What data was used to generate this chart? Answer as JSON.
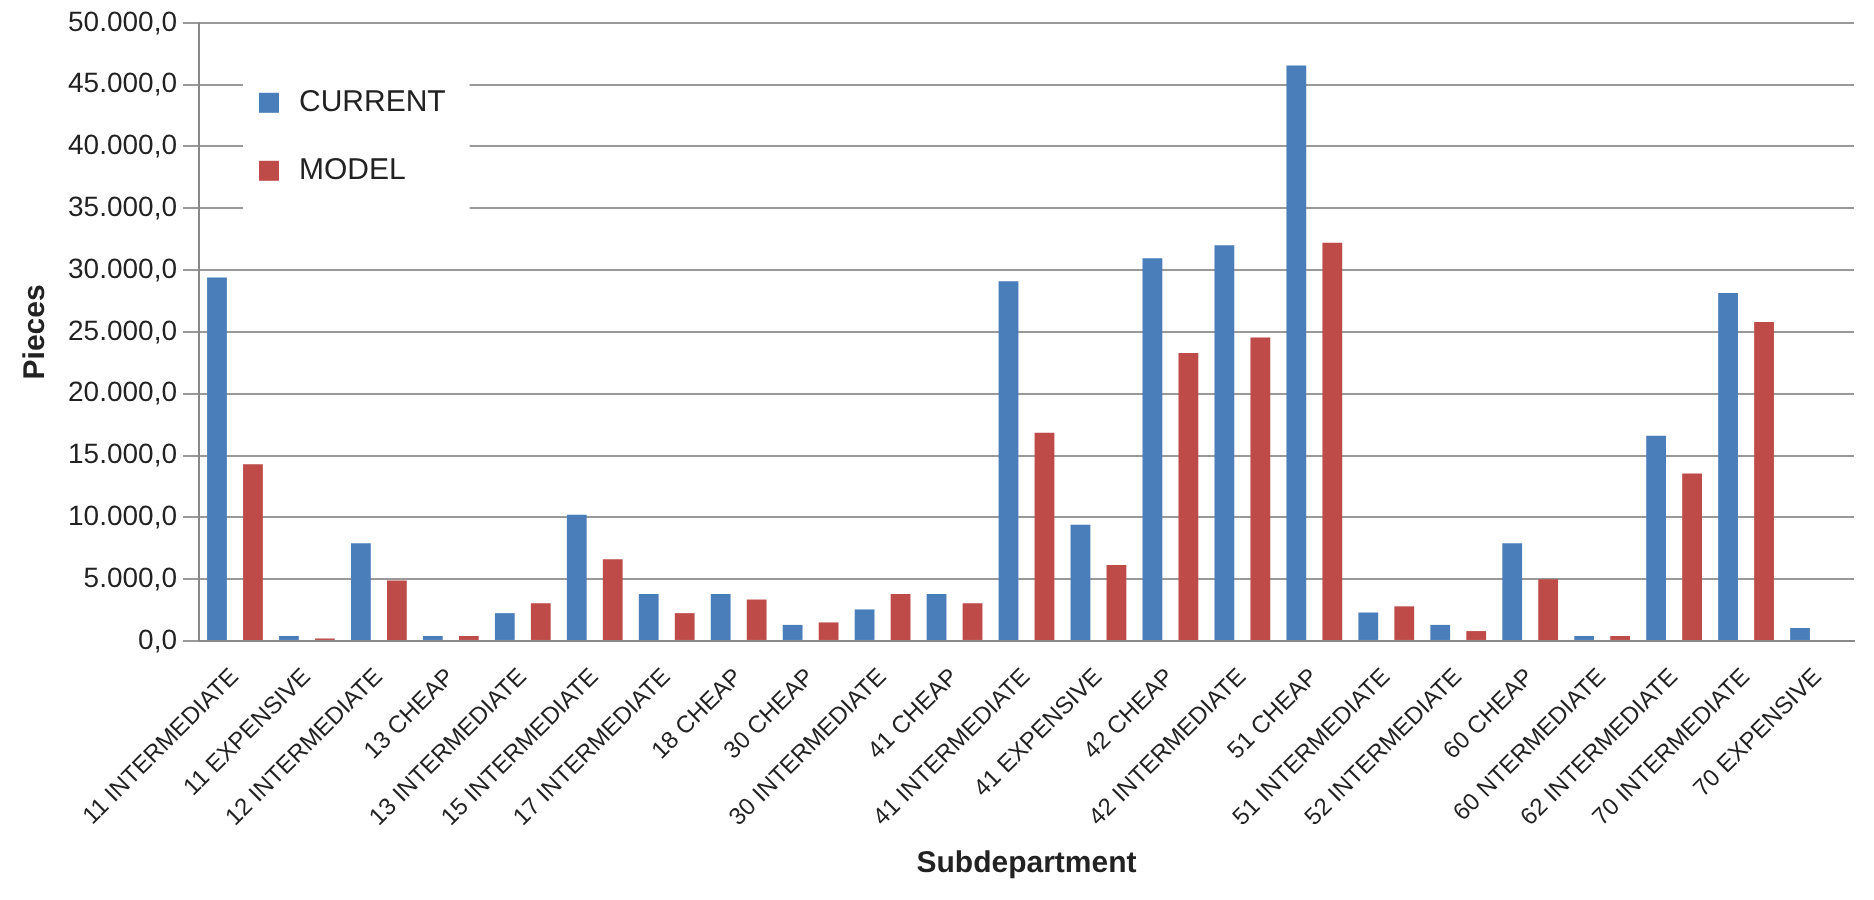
{
  "chart_data": {
    "type": "bar",
    "xlabel": "Subdepartment",
    "ylabel": "Pieces",
    "categories": [
      "11 INTERMEDIATE",
      "11 EXPENSIVE",
      "12 INTERMEDIATE",
      "13 CHEAP",
      "13 INTERMEDIATE",
      "15 INTERMEDIATE",
      "17 INTERMEDIATE",
      "18 CHEAP",
      "30 CHEAP",
      "30 INTERMEDIATE",
      "41 CHEAP",
      "41 INTERMEDIATE",
      "41 EXPENSIVE",
      "42 CHEAP",
      "42 INTERMEDIATE",
      "51 CHEAP",
      "51 INTERMEDIATE",
      "52 INTERMEDIATE",
      "60 CHEAP",
      "60 NTERMEDIATE",
      "62 INTERMEDIATE",
      "70 INTERMEDIATE",
      "70 EXPENSIVE"
    ],
    "series": [
      {
        "name": "CURRENT",
        "color": "#4a7ebb",
        "values": [
          29400,
          400,
          7900,
          400,
          2250,
          10200,
          3800,
          3800,
          1300,
          2550,
          3800,
          29100,
          9400,
          30950,
          32000,
          46550,
          2300,
          1300,
          7900,
          400,
          16600,
          28150,
          1050
        ]
      },
      {
        "name": "MODEL",
        "color": "#be4b48",
        "values": [
          14300,
          200,
          4900,
          400,
          3050,
          6600,
          2250,
          3350,
          1500,
          3800,
          3050,
          16850,
          6150,
          23300,
          24550,
          32200,
          2800,
          800,
          5000,
          400,
          13550,
          25800,
          0
        ]
      }
    ],
    "ylim": [
      0,
      50000
    ],
    "yticks": [
      {
        "value": 0,
        "label": "0,0"
      },
      {
        "value": 5000,
        "label": "5.000,0"
      },
      {
        "value": 10000,
        "label": "10.000,0"
      },
      {
        "value": 15000,
        "label": "15.000,0"
      },
      {
        "value": 20000,
        "label": "20.000,0"
      },
      {
        "value": 25000,
        "label": "25.000,0"
      },
      {
        "value": 30000,
        "label": "30.000,0"
      },
      {
        "value": 35000,
        "label": "35.000,0"
      },
      {
        "value": 40000,
        "label": "40.000,0"
      },
      {
        "value": 45000,
        "label": "45.000,0"
      },
      {
        "value": 50000,
        "label": "50.000,0"
      }
    ],
    "grid": "y",
    "legend": "top left"
  }
}
